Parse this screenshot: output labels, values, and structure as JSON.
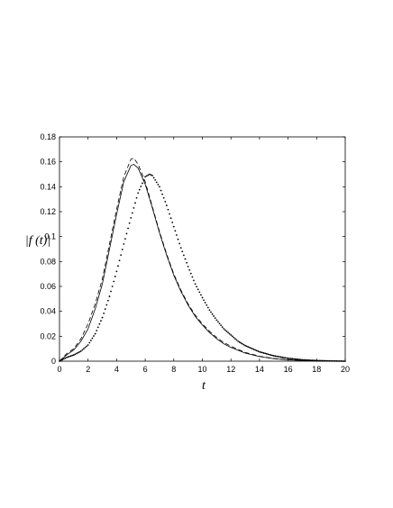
{
  "chart_data": {
    "type": "line",
    "xlabel": "t",
    "ylabel": "|f (t)|",
    "xlim": [
      0,
      20
    ],
    "ylim": [
      0,
      0.18
    ],
    "xticks": [
      0,
      2,
      4,
      6,
      8,
      10,
      12,
      14,
      16,
      18,
      20
    ],
    "yticks": [
      0,
      0.02,
      0.04,
      0.06,
      0.08,
      0.1,
      0.12,
      0.14,
      0.16,
      0.18
    ],
    "xtick_labels": [
      "0",
      "2",
      "4",
      "6",
      "8",
      "10",
      "12",
      "14",
      "16",
      "18",
      "20"
    ],
    "ytick_labels": [
      "0",
      "0.02",
      "0.04",
      "0.06",
      "0.08",
      "0.1",
      "0.12",
      "0.14",
      "0.16",
      "0.18"
    ],
    "grid": false,
    "legend": "none",
    "series": [
      {
        "style": "solid",
        "color": "#000000",
        "x": [
          0,
          0.5,
          1,
          1.5,
          2,
          2.5,
          3,
          3.5,
          4,
          4.5,
          5,
          5.2,
          5.5,
          6,
          6.5,
          7,
          7.5,
          8,
          8.5,
          9,
          9.5,
          10,
          10.5,
          11,
          11.5,
          12,
          13,
          14,
          15,
          16,
          17,
          18,
          19,
          20
        ],
        "y": [
          0,
          0.005,
          0.009,
          0.016,
          0.026,
          0.042,
          0.062,
          0.09,
          0.118,
          0.144,
          0.157,
          0.158,
          0.155,
          0.142,
          0.123,
          0.103,
          0.085,
          0.069,
          0.056,
          0.045,
          0.036,
          0.029,
          0.023,
          0.018,
          0.014,
          0.011,
          0.0065,
          0.0037,
          0.002,
          0.001,
          0.0005,
          0.0002,
          0.0001,
          0
        ]
      },
      {
        "style": "dashed",
        "color": "#000000",
        "x": [
          0,
          0.5,
          1,
          1.5,
          2,
          2.5,
          3,
          3.5,
          4,
          4.5,
          5,
          5.2,
          5.5,
          6,
          6.5,
          7,
          7.5,
          8,
          8.5,
          9,
          9.5,
          10,
          10.5,
          11,
          11.5,
          12,
          13,
          14,
          15,
          16,
          17,
          18,
          19,
          20
        ],
        "y": [
          0,
          0.006,
          0.01,
          0.018,
          0.03,
          0.046,
          0.066,
          0.094,
          0.122,
          0.148,
          0.162,
          0.163,
          0.158,
          0.144,
          0.124,
          0.104,
          0.086,
          0.07,
          0.057,
          0.046,
          0.037,
          0.03,
          0.024,
          0.019,
          0.015,
          0.012,
          0.007,
          0.004,
          0.0022,
          0.0012,
          0.0006,
          0.0003,
          0.0001,
          0
        ]
      },
      {
        "style": "dotted",
        "color": "#000000",
        "x": [
          0,
          0.5,
          1,
          1.5,
          2,
          2.5,
          3,
          3.5,
          4,
          4.5,
          5,
          5.5,
          6,
          6.3,
          6.5,
          7,
          7.5,
          8,
          8.5,
          9,
          9.5,
          10,
          10.5,
          11,
          11.5,
          12,
          12.5,
          13,
          14,
          15,
          16,
          17,
          18,
          19,
          20
        ],
        "y": [
          0,
          0.003,
          0.005,
          0.008,
          0.013,
          0.022,
          0.035,
          0.052,
          0.072,
          0.094,
          0.115,
          0.135,
          0.148,
          0.15,
          0.149,
          0.14,
          0.125,
          0.108,
          0.091,
          0.076,
          0.062,
          0.051,
          0.041,
          0.033,
          0.026,
          0.021,
          0.016,
          0.0125,
          0.0075,
          0.0043,
          0.0023,
          0.0011,
          0.0005,
          0.0002,
          0
        ]
      }
    ]
  }
}
